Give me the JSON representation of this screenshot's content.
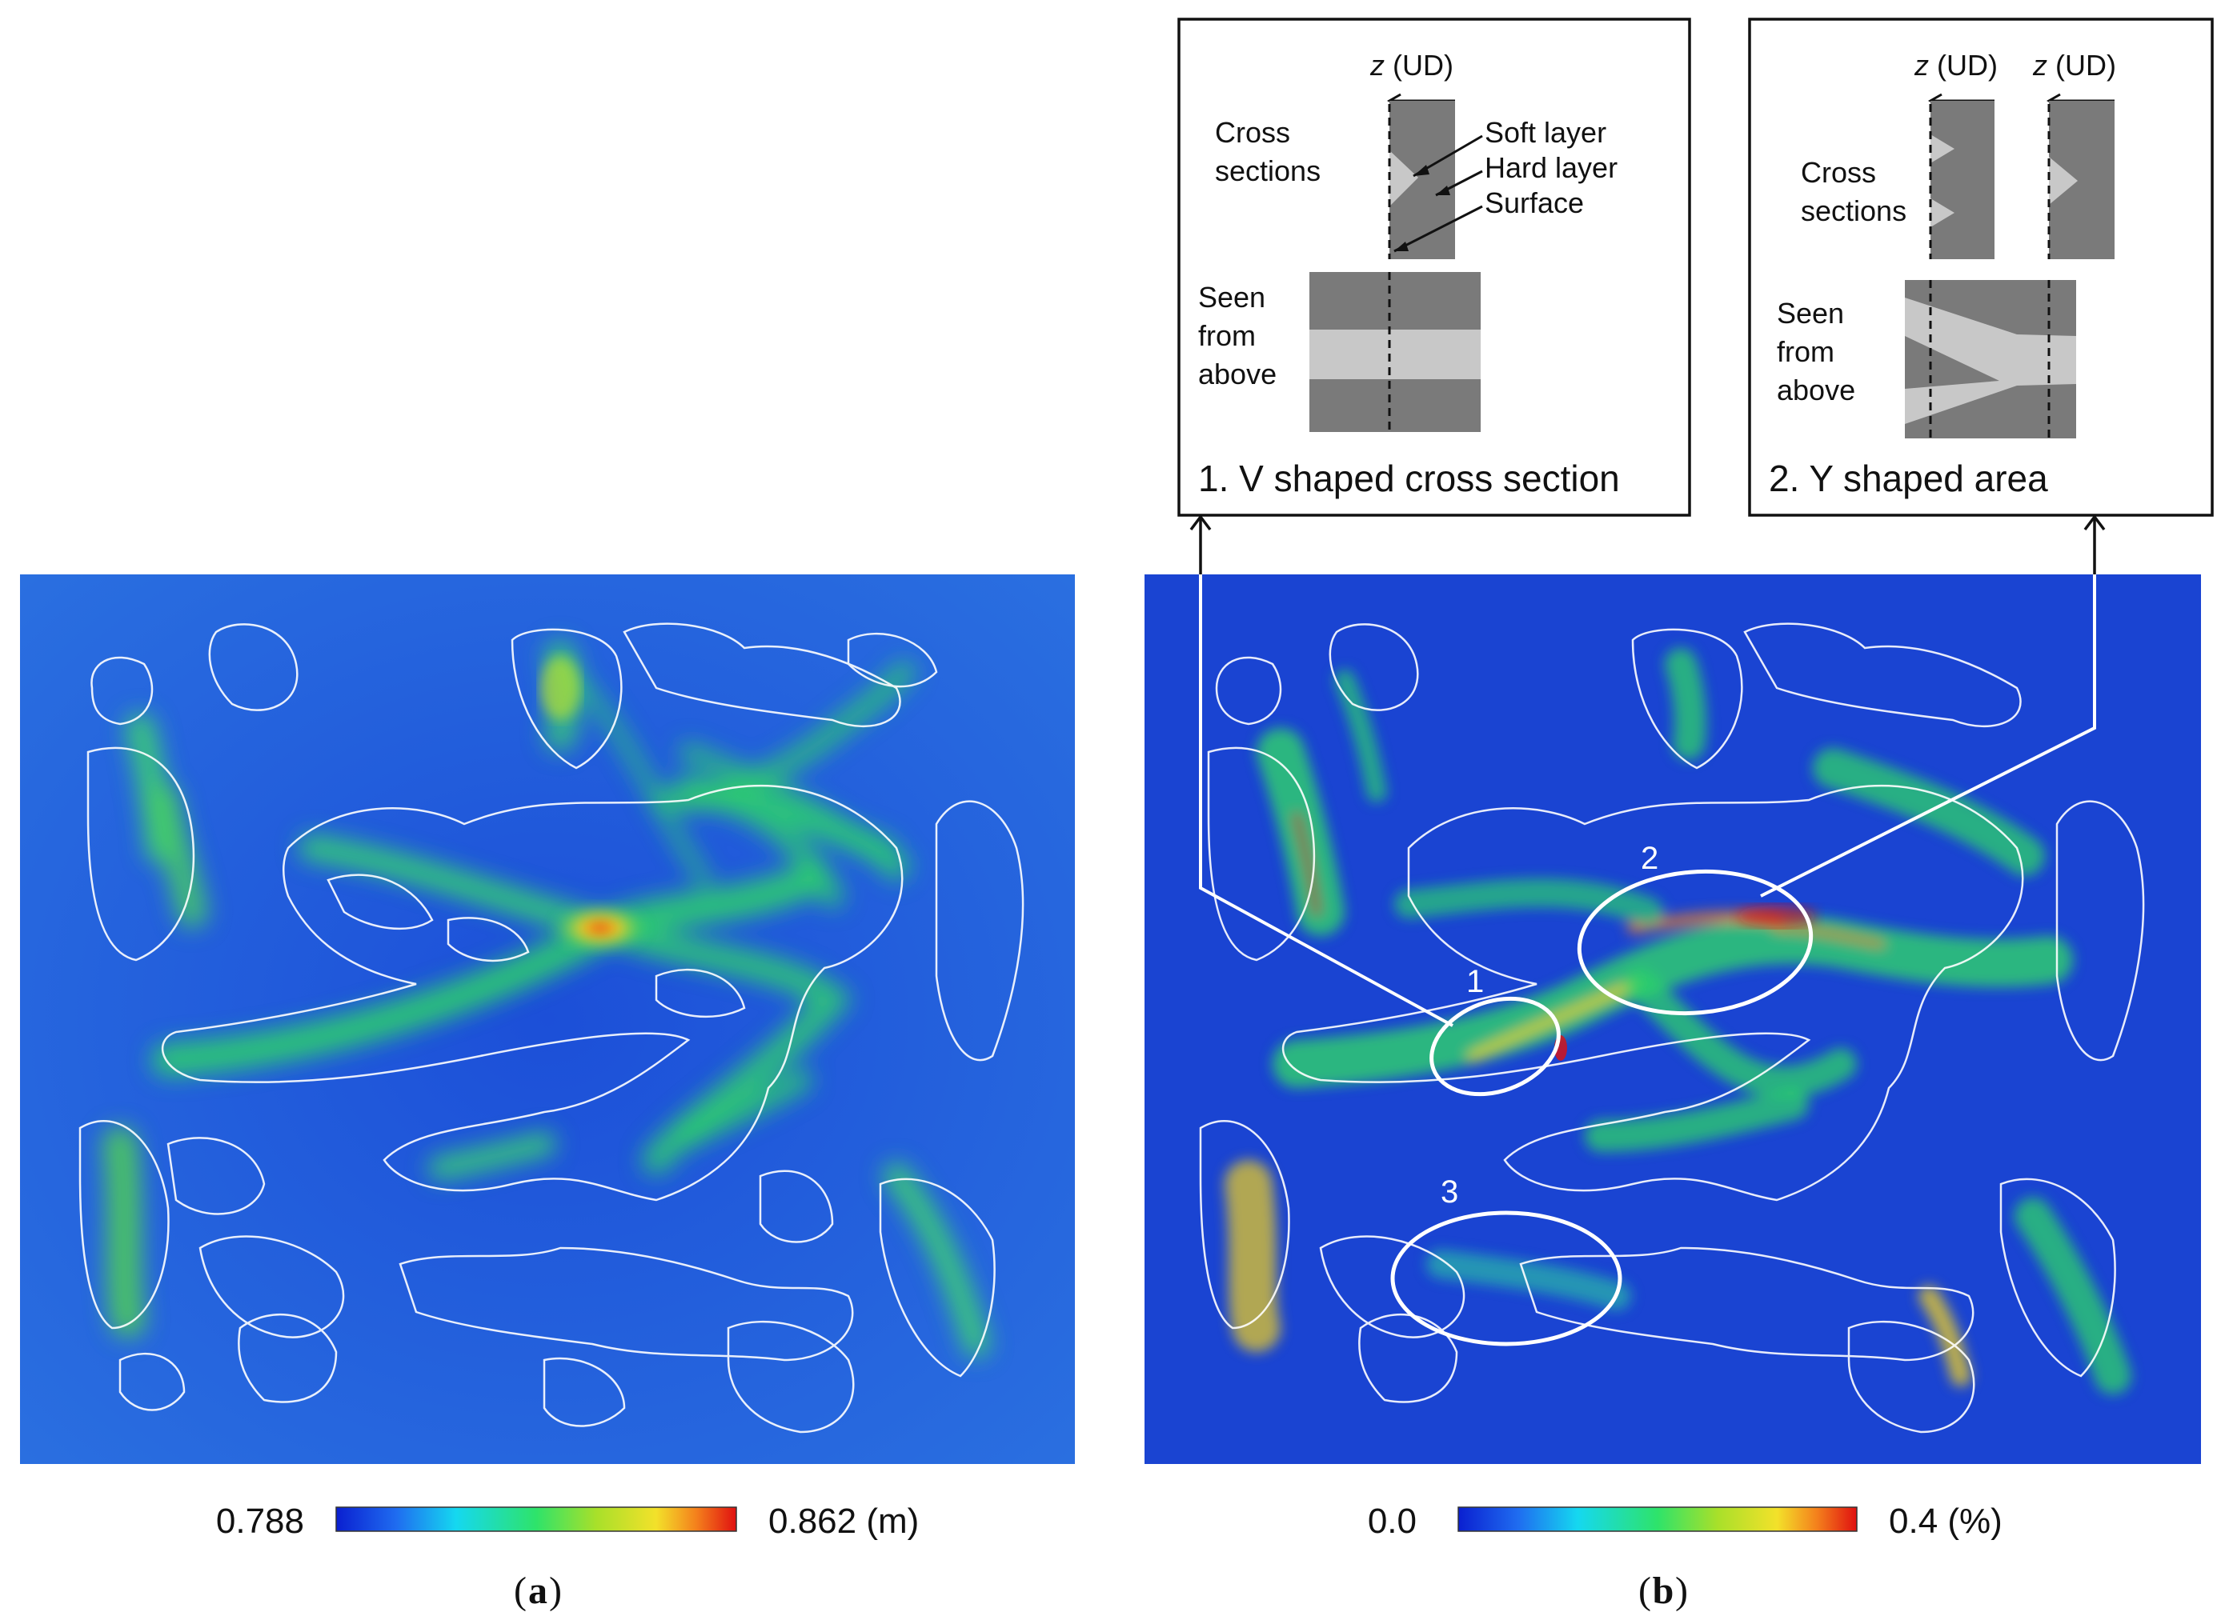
{
  "panel_a": {
    "colorbar": {
      "min_label": "0.788",
      "max_label": "0.862 (m)"
    },
    "caption_letter": "a"
  },
  "panel_b": {
    "colorbar": {
      "min_label": "0.0",
      "max_label": "0.4 (%)"
    },
    "caption_letter": "b",
    "markers": [
      "1",
      "2",
      "3"
    ]
  },
  "inset_v": {
    "axis_label_italic": "z",
    "axis_label_rest": " (UD)",
    "cross_sections": [
      "Cross",
      "sections"
    ],
    "soft_layer": "Soft layer",
    "hard_layer": "Hard layer",
    "surface": "Surface",
    "seen_from_above": [
      "Seen",
      "from",
      "above"
    ],
    "title": "1. V shaped cross section"
  },
  "inset_y": {
    "axis_label_italic": "z",
    "axis_label_rest": " (UD)",
    "cross_sections": [
      "Cross",
      "sections"
    ],
    "seen_from_above": [
      "Seen",
      "from",
      "above"
    ],
    "title": "2. Y shaped area"
  },
  "colors": {
    "field_blue": "#1f55d6",
    "gray_dark": "#7a7a7a",
    "gray_light": "#c8c8c8",
    "outline": "#ffffff"
  }
}
